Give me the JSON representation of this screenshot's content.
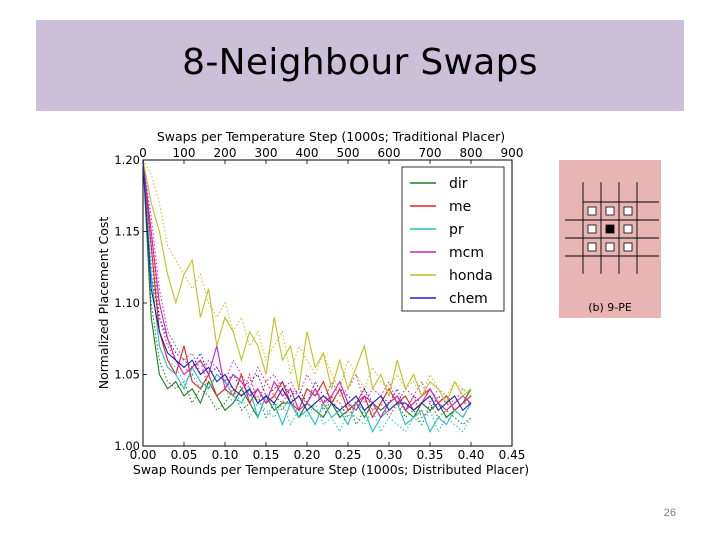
{
  "slide": {
    "title": "8-Neighbour Swaps",
    "page_number": "26"
  },
  "inset": {
    "caption": "(b) 9-PE",
    "center_cell": "filled-square",
    "neighbor_cells": "empty-squares"
  },
  "chart_data": {
    "type": "line",
    "title": "Swaps per Temperature Step (1000s; Traditional Placer)",
    "xlabel": "Swap Rounds per Temperature Step (1000s; Distributed Placer)",
    "ylabel": "Normalized Placement Cost",
    "xlim": [
      0.0,
      0.45
    ],
    "ylim": [
      1.0,
      1.2
    ],
    "x_ticks": [
      "0.00",
      "0.05",
      "0.10",
      "0.15",
      "0.20",
      "0.25",
      "0.30",
      "0.35",
      "0.40",
      "0.45"
    ],
    "x_tick_values": [
      0.0,
      0.05,
      0.1,
      0.15,
      0.2,
      0.25,
      0.3,
      0.35,
      0.4,
      0.45
    ],
    "y_ticks": [
      "1.00",
      "1.05",
      "1.10",
      "1.15",
      "1.20"
    ],
    "y_tick_values": [
      1.0,
      1.05,
      1.1,
      1.15,
      1.2
    ],
    "top_xlim": [
      0,
      900
    ],
    "top_ticks": [
      "0",
      "100",
      "200",
      "300",
      "400",
      "500",
      "600",
      "700",
      "800",
      "900"
    ],
    "top_tick_values": [
      0,
      100,
      200,
      300,
      400,
      500,
      600,
      700,
      800,
      900
    ],
    "x": [
      0.0,
      0.01,
      0.02,
      0.03,
      0.04,
      0.05,
      0.06,
      0.07,
      0.08,
      0.09,
      0.1,
      0.11,
      0.12,
      0.13,
      0.14,
      0.15,
      0.16,
      0.17,
      0.18,
      0.19,
      0.2,
      0.21,
      0.22,
      0.23,
      0.24,
      0.25,
      0.26,
      0.27,
      0.28,
      0.29,
      0.3,
      0.31,
      0.32,
      0.33,
      0.34,
      0.35,
      0.36,
      0.37,
      0.38,
      0.39,
      0.4
    ],
    "legend_position": "top-right",
    "series": [
      {
        "name": "dir",
        "color": "#1e7b1e",
        "values": [
          1.2,
          1.09,
          1.05,
          1.04,
          1.045,
          1.035,
          1.04,
          1.03,
          1.045,
          1.035,
          1.025,
          1.03,
          1.04,
          1.03,
          1.02,
          1.035,
          1.025,
          1.03,
          1.03,
          1.02,
          1.03,
          1.025,
          1.02,
          1.03,
          1.02,
          1.025,
          1.03,
          1.02,
          1.03,
          1.025,
          1.03,
          1.035,
          1.025,
          1.02,
          1.03,
          1.025,
          1.03,
          1.02,
          1.025,
          1.03,
          1.04
        ]
      },
      {
        "name": "me",
        "color": "#e82020",
        "values": [
          1.2,
          1.14,
          1.08,
          1.06,
          1.05,
          1.07,
          1.045,
          1.04,
          1.05,
          1.035,
          1.04,
          1.035,
          1.05,
          1.03,
          1.04,
          1.03,
          1.035,
          1.045,
          1.03,
          1.025,
          1.04,
          1.035,
          1.045,
          1.03,
          1.04,
          1.025,
          1.03,
          1.035,
          1.02,
          1.03,
          1.04,
          1.03,
          1.035,
          1.025,
          1.03,
          1.04,
          1.03,
          1.035,
          1.025,
          1.03,
          1.035
        ]
      },
      {
        "name": "pr",
        "color": "#20c0c0",
        "values": [
          1.2,
          1.12,
          1.07,
          1.055,
          1.05,
          1.04,
          1.055,
          1.045,
          1.04,
          1.05,
          1.045,
          1.035,
          1.03,
          1.04,
          1.02,
          1.035,
          1.03,
          1.015,
          1.03,
          1.02,
          1.025,
          1.015,
          1.03,
          1.02,
          1.025,
          1.015,
          1.03,
          1.025,
          1.01,
          1.02,
          1.025,
          1.03,
          1.015,
          1.02,
          1.025,
          1.01,
          1.02,
          1.015,
          1.025,
          1.02,
          1.03
        ]
      },
      {
        "name": "mcm",
        "color": "#d020c0",
        "values": [
          1.2,
          1.15,
          1.1,
          1.075,
          1.06,
          1.05,
          1.055,
          1.06,
          1.05,
          1.07,
          1.04,
          1.05,
          1.045,
          1.035,
          1.04,
          1.03,
          1.045,
          1.035,
          1.04,
          1.025,
          1.03,
          1.04,
          1.03,
          1.035,
          1.045,
          1.03,
          1.025,
          1.035,
          1.03,
          1.02,
          1.03,
          1.035,
          1.025,
          1.03,
          1.035,
          1.04,
          1.03,
          1.025,
          1.03,
          1.035,
          1.03
        ]
      },
      {
        "name": "honda",
        "color": "#c0c020",
        "values": [
          1.2,
          1.17,
          1.15,
          1.12,
          1.1,
          1.12,
          1.13,
          1.09,
          1.11,
          1.07,
          1.09,
          1.08,
          1.06,
          1.08,
          1.07,
          1.05,
          1.09,
          1.06,
          1.07,
          1.04,
          1.08,
          1.055,
          1.065,
          1.04,
          1.06,
          1.04,
          1.055,
          1.07,
          1.04,
          1.05,
          1.035,
          1.06,
          1.04,
          1.05,
          1.035,
          1.045,
          1.04,
          1.03,
          1.045,
          1.035,
          1.04
        ]
      },
      {
        "name": "chem",
        "color": "#2020c0",
        "values": [
          1.2,
          1.11,
          1.08,
          1.065,
          1.06,
          1.055,
          1.06,
          1.05,
          1.055,
          1.045,
          1.05,
          1.04,
          1.035,
          1.04,
          1.03,
          1.035,
          1.03,
          1.04,
          1.03,
          1.035,
          1.025,
          1.03,
          1.035,
          1.03,
          1.025,
          1.03,
          1.035,
          1.025,
          1.03,
          1.035,
          1.025,
          1.03,
          1.03,
          1.025,
          1.03,
          1.035,
          1.025,
          1.03,
          1.035,
          1.025,
          1.03
        ]
      }
    ],
    "traditional_series_style": "dotted",
    "traditional_series": [
      {
        "name": "dir",
        "color": "#1e7b1e",
        "values": [
          1.2,
          1.1,
          1.06,
          1.045,
          1.04,
          1.045,
          1.03,
          1.04,
          1.035,
          1.025,
          1.03,
          1.04,
          1.025,
          1.03,
          1.035,
          1.02,
          1.03,
          1.025,
          1.035,
          1.02,
          1.03,
          1.025,
          1.02,
          1.035,
          1.02,
          1.03,
          1.015,
          1.025,
          1.03,
          1.02,
          1.025,
          1.03,
          1.02,
          1.025,
          1.015,
          1.03,
          1.02,
          1.025,
          1.02,
          1.015,
          1.02
        ]
      },
      {
        "name": "me",
        "color": "#e82020",
        "values": [
          1.2,
          1.15,
          1.09,
          1.07,
          1.06,
          1.055,
          1.05,
          1.06,
          1.04,
          1.05,
          1.045,
          1.04,
          1.035,
          1.05,
          1.03,
          1.045,
          1.035,
          1.03,
          1.04,
          1.035,
          1.03,
          1.04,
          1.025,
          1.035,
          1.03,
          1.02,
          1.03,
          1.04,
          1.025,
          1.03,
          1.02,
          1.03,
          1.025,
          1.035,
          1.02,
          1.025,
          1.03,
          1.02,
          1.025,
          1.02,
          1.03
        ]
      },
      {
        "name": "pr",
        "color": "#20c0c0",
        "values": [
          1.2,
          1.13,
          1.08,
          1.06,
          1.055,
          1.045,
          1.05,
          1.04,
          1.045,
          1.035,
          1.04,
          1.03,
          1.035,
          1.02,
          1.03,
          1.025,
          1.02,
          1.03,
          1.015,
          1.025,
          1.02,
          1.03,
          1.015,
          1.02,
          1.01,
          1.025,
          1.02,
          1.015,
          1.025,
          1.01,
          1.02,
          1.015,
          1.01,
          1.02,
          1.015,
          1.025,
          1.01,
          1.02,
          1.015,
          1.01,
          1.02
        ]
      },
      {
        "name": "mcm",
        "color": "#d020c0",
        "values": [
          1.2,
          1.16,
          1.11,
          1.08,
          1.07,
          1.06,
          1.065,
          1.05,
          1.06,
          1.055,
          1.045,
          1.06,
          1.05,
          1.04,
          1.055,
          1.045,
          1.05,
          1.04,
          1.045,
          1.035,
          1.05,
          1.04,
          1.03,
          1.045,
          1.035,
          1.04,
          1.05,
          1.03,
          1.04,
          1.035,
          1.045,
          1.03,
          1.04,
          1.035,
          1.045,
          1.03,
          1.04,
          1.035,
          1.03,
          1.04,
          1.035
        ]
      },
      {
        "name": "honda",
        "color": "#c0c020",
        "values": [
          1.2,
          1.19,
          1.17,
          1.14,
          1.13,
          1.12,
          1.11,
          1.12,
          1.1,
          1.09,
          1.1,
          1.08,
          1.09,
          1.07,
          1.08,
          1.06,
          1.07,
          1.08,
          1.05,
          1.07,
          1.06,
          1.05,
          1.065,
          1.05,
          1.04,
          1.06,
          1.05,
          1.04,
          1.055,
          1.045,
          1.04,
          1.05,
          1.04,
          1.045,
          1.035,
          1.05,
          1.04,
          1.035,
          1.045,
          1.04,
          1.035
        ]
      },
      {
        "name": "chem",
        "color": "#2020c0",
        "values": [
          1.2,
          1.12,
          1.09,
          1.075,
          1.065,
          1.06,
          1.055,
          1.065,
          1.05,
          1.055,
          1.045,
          1.05,
          1.04,
          1.045,
          1.05,
          1.035,
          1.04,
          1.045,
          1.035,
          1.04,
          1.03,
          1.045,
          1.035,
          1.03,
          1.04,
          1.035,
          1.03,
          1.04,
          1.03,
          1.035,
          1.03,
          1.04,
          1.025,
          1.035,
          1.03,
          1.025,
          1.035,
          1.03,
          1.025,
          1.03,
          1.03
        ]
      }
    ]
  }
}
